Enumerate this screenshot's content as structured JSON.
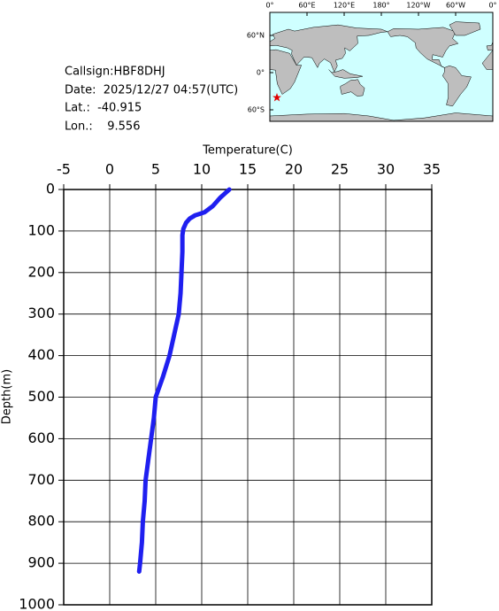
{
  "info": {
    "callsign": "Callsign:HBF8DHJ",
    "date": "Date:  2025/12/27 04:57(UTC)",
    "lat": "Lat.:  -40.915",
    "lon": "Lon.:    9.556"
  },
  "map": {
    "lon_labels": [
      "0°",
      "60°E",
      "120°E",
      "180°",
      "120°W",
      "60°W",
      "0°"
    ],
    "lat_labels": [
      "60°N",
      "0°",
      "60°S"
    ]
  },
  "chart_data": {
    "type": "line",
    "x_label": "Temperature(C)",
    "y_label": "Depth(m)",
    "color": "#1f1ff0",
    "xlim": [
      -5,
      35
    ],
    "xticks": [
      -5,
      0,
      5,
      10,
      15,
      20,
      25,
      30,
      35
    ],
    "ylim": [
      0,
      1000
    ],
    "yticks": [
      0,
      100,
      200,
      300,
      400,
      500,
      600,
      700,
      800,
      900,
      1000
    ],
    "y_inverted": true,
    "grid": true,
    "depth": [
      0,
      10,
      20,
      40,
      55,
      62,
      70,
      80,
      95,
      110,
      150,
      200,
      250,
      300,
      350,
      400,
      450,
      500,
      550,
      600,
      650,
      700,
      750,
      800,
      850,
      900,
      920
    ],
    "temperature": [
      13.0,
      12.5,
      12.0,
      11.2,
      10.3,
      9.3,
      8.7,
      8.3,
      8.0,
      7.9,
      7.9,
      7.8,
      7.7,
      7.5,
      7.0,
      6.5,
      5.8,
      5.0,
      4.8,
      4.5,
      4.2,
      3.9,
      3.8,
      3.6,
      3.5,
      3.3,
      3.2
    ]
  }
}
